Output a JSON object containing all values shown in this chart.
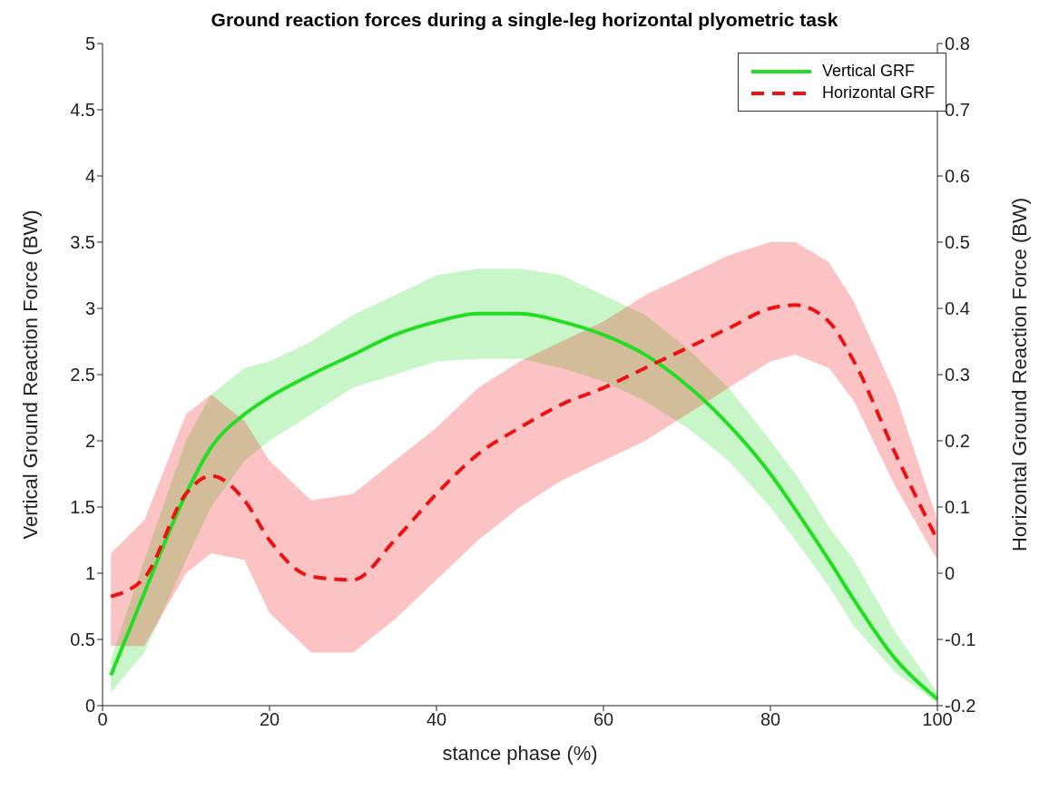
{
  "chart_data": {
    "type": "line",
    "title": "Ground reaction forces during a single-leg horizontal plyometric task",
    "xlabel": "stance phase (%)",
    "ylabel": "Vertical Ground Reaction Force (BW)",
    "y2label": "Horizontal Ground Reaction Force (BW)",
    "x": [
      1,
      5,
      10,
      13,
      17,
      20,
      25,
      30,
      35,
      40,
      45,
      50,
      55,
      60,
      65,
      70,
      75,
      80,
      83,
      87,
      90,
      95,
      100
    ],
    "series": [
      {
        "name": "Vertical GRF",
        "color": "#22dd22",
        "line_style": "solid",
        "values": [
          0.23,
          0.85,
          1.6,
          1.95,
          2.2,
          2.33,
          2.5,
          2.65,
          2.8,
          2.9,
          2.96,
          2.96,
          2.9,
          2.8,
          2.65,
          2.42,
          2.12,
          1.75,
          1.48,
          1.1,
          0.8,
          0.35,
          0.05
        ],
        "lower": [
          0.1,
          0.4,
          1.1,
          1.5,
          1.85,
          2.0,
          2.2,
          2.4,
          2.5,
          2.6,
          2.62,
          2.62,
          2.55,
          2.45,
          2.3,
          2.1,
          1.85,
          1.5,
          1.25,
          0.9,
          0.6,
          0.25,
          0.02
        ],
        "upper": [
          0.35,
          1.1,
          2.0,
          2.35,
          2.55,
          2.6,
          2.75,
          2.95,
          3.1,
          3.25,
          3.3,
          3.3,
          3.25,
          3.1,
          2.95,
          2.7,
          2.4,
          2.0,
          1.75,
          1.35,
          1.1,
          0.55,
          0.1
        ]
      },
      {
        "name": "Horizontal GRF",
        "color": "#ee1111",
        "line_style": "dashed",
        "axis": "y2",
        "values": [
          -0.035,
          -0.007,
          0.12,
          0.147,
          0.11,
          0.05,
          -0.005,
          -0.01,
          0.05,
          0.12,
          0.18,
          0.22,
          0.255,
          0.28,
          0.31,
          0.34,
          0.37,
          0.4,
          0.405,
          0.38,
          0.32,
          0.18,
          0.05
        ],
        "lower": [
          -0.11,
          -0.11,
          0.0,
          0.03,
          0.02,
          -0.06,
          -0.12,
          -0.12,
          -0.07,
          -0.01,
          0.05,
          0.1,
          0.14,
          0.17,
          0.2,
          0.24,
          0.28,
          0.32,
          0.33,
          0.31,
          0.26,
          0.13,
          0.02
        ],
        "upper": [
          0.03,
          0.08,
          0.24,
          0.27,
          0.23,
          0.17,
          0.11,
          0.12,
          0.17,
          0.22,
          0.28,
          0.32,
          0.35,
          0.38,
          0.42,
          0.45,
          0.48,
          0.5,
          0.5,
          0.47,
          0.41,
          0.27,
          0.08
        ]
      }
    ],
    "xlim": [
      0,
      100
    ],
    "xticks": [
      0,
      20,
      40,
      60,
      80,
      100
    ],
    "ylim": [
      0,
      5
    ],
    "yticks": [
      0,
      0.5,
      1,
      1.5,
      2,
      2.5,
      3,
      3.5,
      4,
      4.5,
      5
    ],
    "y2lim": [
      -0.2,
      0.8
    ],
    "y2ticks": [
      -0.2,
      -0.1,
      0,
      0.1,
      0.2,
      0.3,
      0.4,
      0.5,
      0.6,
      0.7,
      0.8
    ],
    "grid": false,
    "legend": "top right",
    "marker": "none"
  }
}
